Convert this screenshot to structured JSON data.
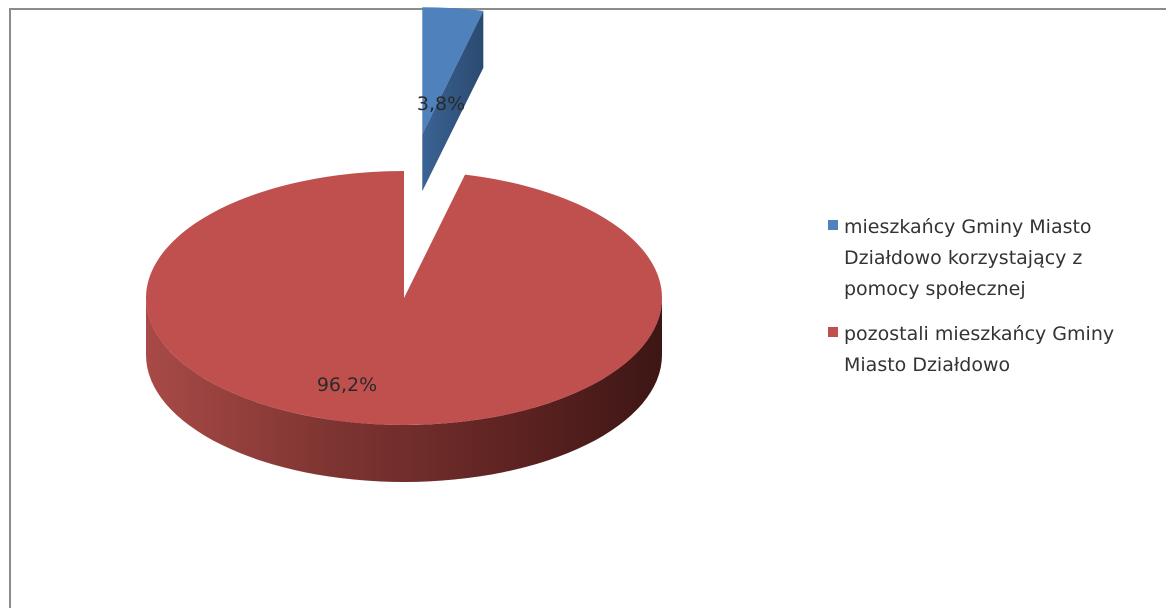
{
  "chart_data": {
    "type": "pie",
    "style": "3d-exploded",
    "categories": [
      "mieszkańcy Gminy Miasto Działdowo korzystający z pomocy społecznej",
      "pozostali mieszkańcy Gminy Miasto Działdowo"
    ],
    "values": [
      3.8,
      96.2
    ],
    "labels": [
      "3,8%",
      "96,2%"
    ],
    "colors": [
      "#4f81bd",
      "#c0504d"
    ],
    "legend_position": "right",
    "title": ""
  },
  "legend": {
    "items": [
      {
        "label": "mieszkańcy Gminy Miasto Działdowo korzystający z pomocy społecznej",
        "color": "#4f81bd"
      },
      {
        "label": "pozostali mieszkańcy Gminy Miasto Działdowo",
        "color": "#c0504d"
      }
    ]
  }
}
